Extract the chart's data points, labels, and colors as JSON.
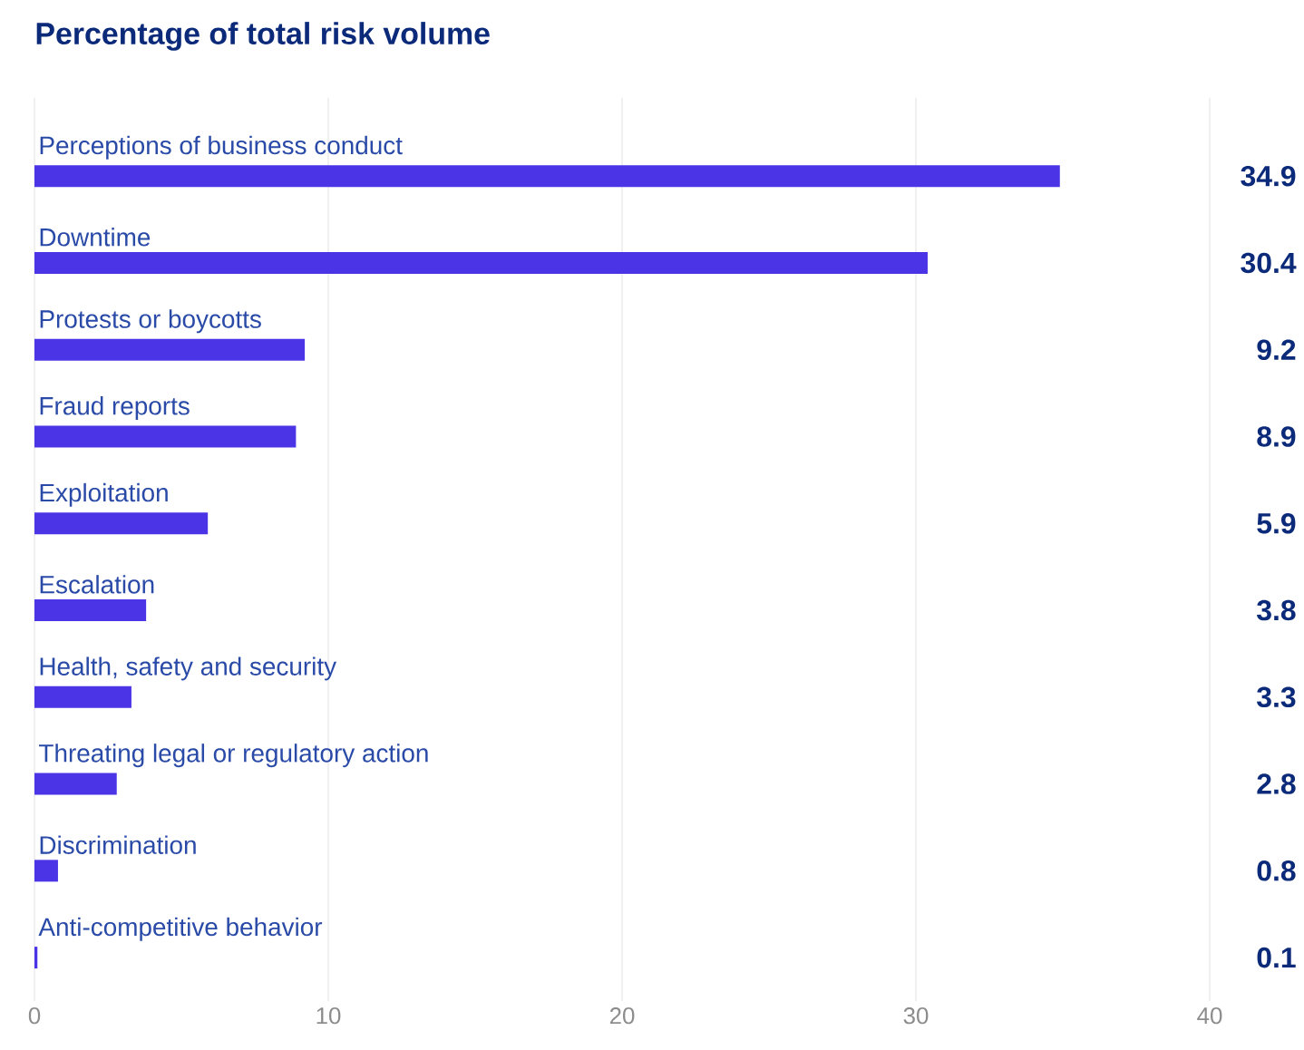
{
  "chart_data": {
    "type": "bar",
    "orientation": "horizontal",
    "title": "Percentage of total risk volume",
    "categories": [
      "Perceptions of business conduct",
      "Downtime",
      "Protests or boycotts",
      "Fraud reports",
      "Exploitation",
      "Escalation",
      "Health, safety and security",
      "Threating legal or regulatory action",
      "Discrimination",
      "Anti-competitive behavior"
    ],
    "values": [
      34.9,
      30.4,
      9.2,
      8.9,
      5.9,
      3.8,
      3.3,
      2.8,
      0.8,
      0.1
    ],
    "color": "#4a34e6",
    "xlim": [
      0,
      40
    ],
    "xticks": [
      0,
      10,
      20,
      30,
      40
    ],
    "grid": "x",
    "data_labels": true
  }
}
